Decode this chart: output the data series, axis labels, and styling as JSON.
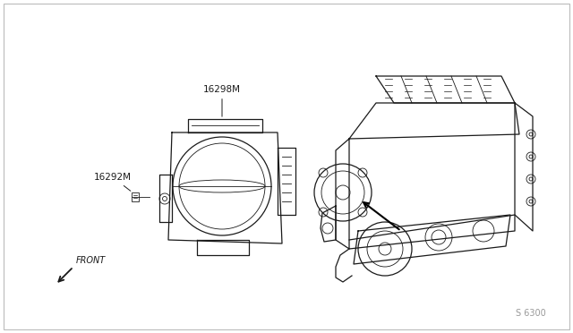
{
  "bg_color": "#ffffff",
  "line_color": "#1a1a1a",
  "label_16298M": "16298M",
  "label_16292M": "16292M",
  "label_front": "FRONT",
  "label_partnum": "S 6300",
  "fig_width": 6.4,
  "fig_height": 3.72,
  "dpi": 100,
  "border_color": "#bbbbbb"
}
